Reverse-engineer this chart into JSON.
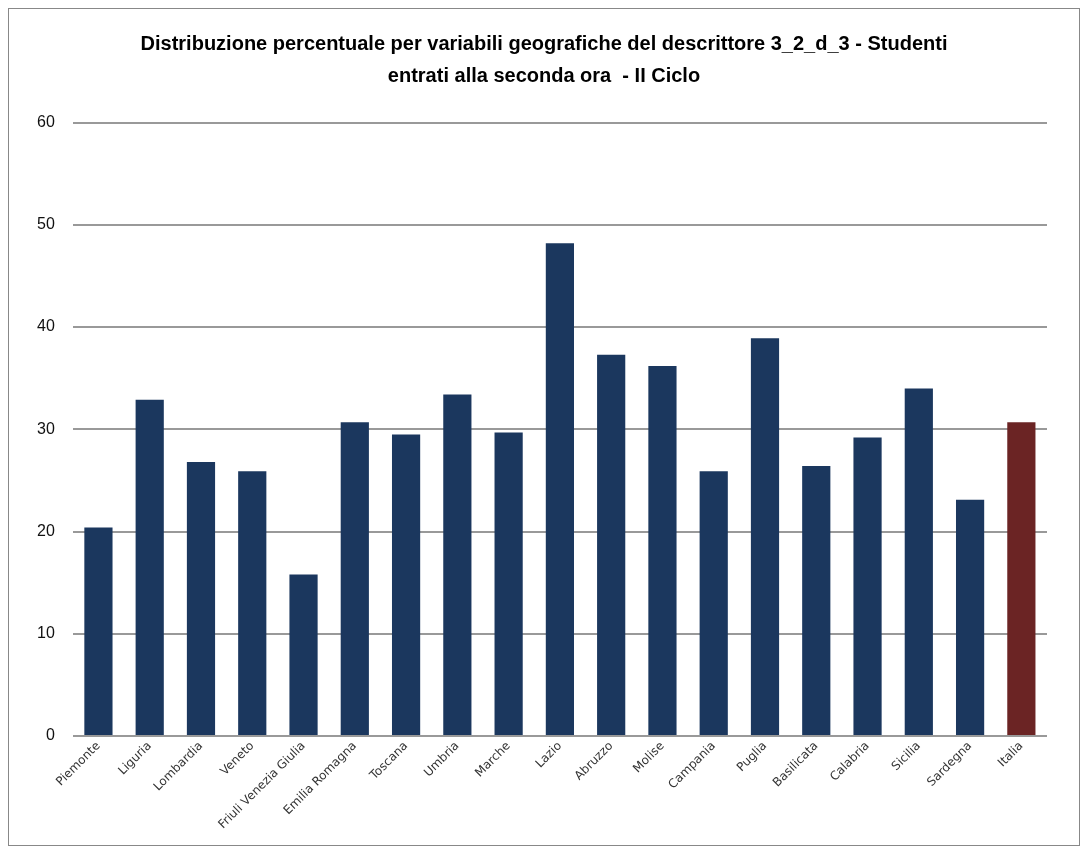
{
  "chart_data": {
    "type": "bar",
    "title": "Distribuzione percentuale per variabili geografiche del descrittore 3_2_d_3 - Studenti entrati alla seconda ora  - II Ciclo",
    "categories": [
      "Piemonte",
      "Liguria",
      "Lombardia",
      "Veneto",
      "Friuli Venezia Giulia",
      "Emilia Romagna",
      "Toscana",
      "Umbria",
      "Marche",
      "Lazio",
      "Abruzzo",
      "Molise",
      "Campania",
      "Puglia",
      "Basilicata",
      "Calabria",
      "Sicilia",
      "Sardegna",
      "Italia"
    ],
    "values": [
      20.4,
      32.9,
      26.8,
      25.9,
      15.8,
      30.7,
      29.5,
      33.4,
      29.7,
      48.2,
      37.3,
      36.2,
      25.9,
      38.9,
      26.4,
      29.2,
      34.0,
      23.1,
      30.7
    ],
    "colors": [
      "#1b375e",
      "#1b375e",
      "#1b375e",
      "#1b375e",
      "#1b375e",
      "#1b375e",
      "#1b375e",
      "#1b375e",
      "#1b375e",
      "#1b375e",
      "#1b375e",
      "#1b375e",
      "#1b375e",
      "#1b375e",
      "#1b375e",
      "#1b375e",
      "#1b375e",
      "#1b375e",
      "#6b2424"
    ],
    "ylim": [
      0,
      60
    ],
    "yticks": [
      0,
      10,
      20,
      30,
      40,
      50,
      60
    ],
    "grid": "y"
  }
}
